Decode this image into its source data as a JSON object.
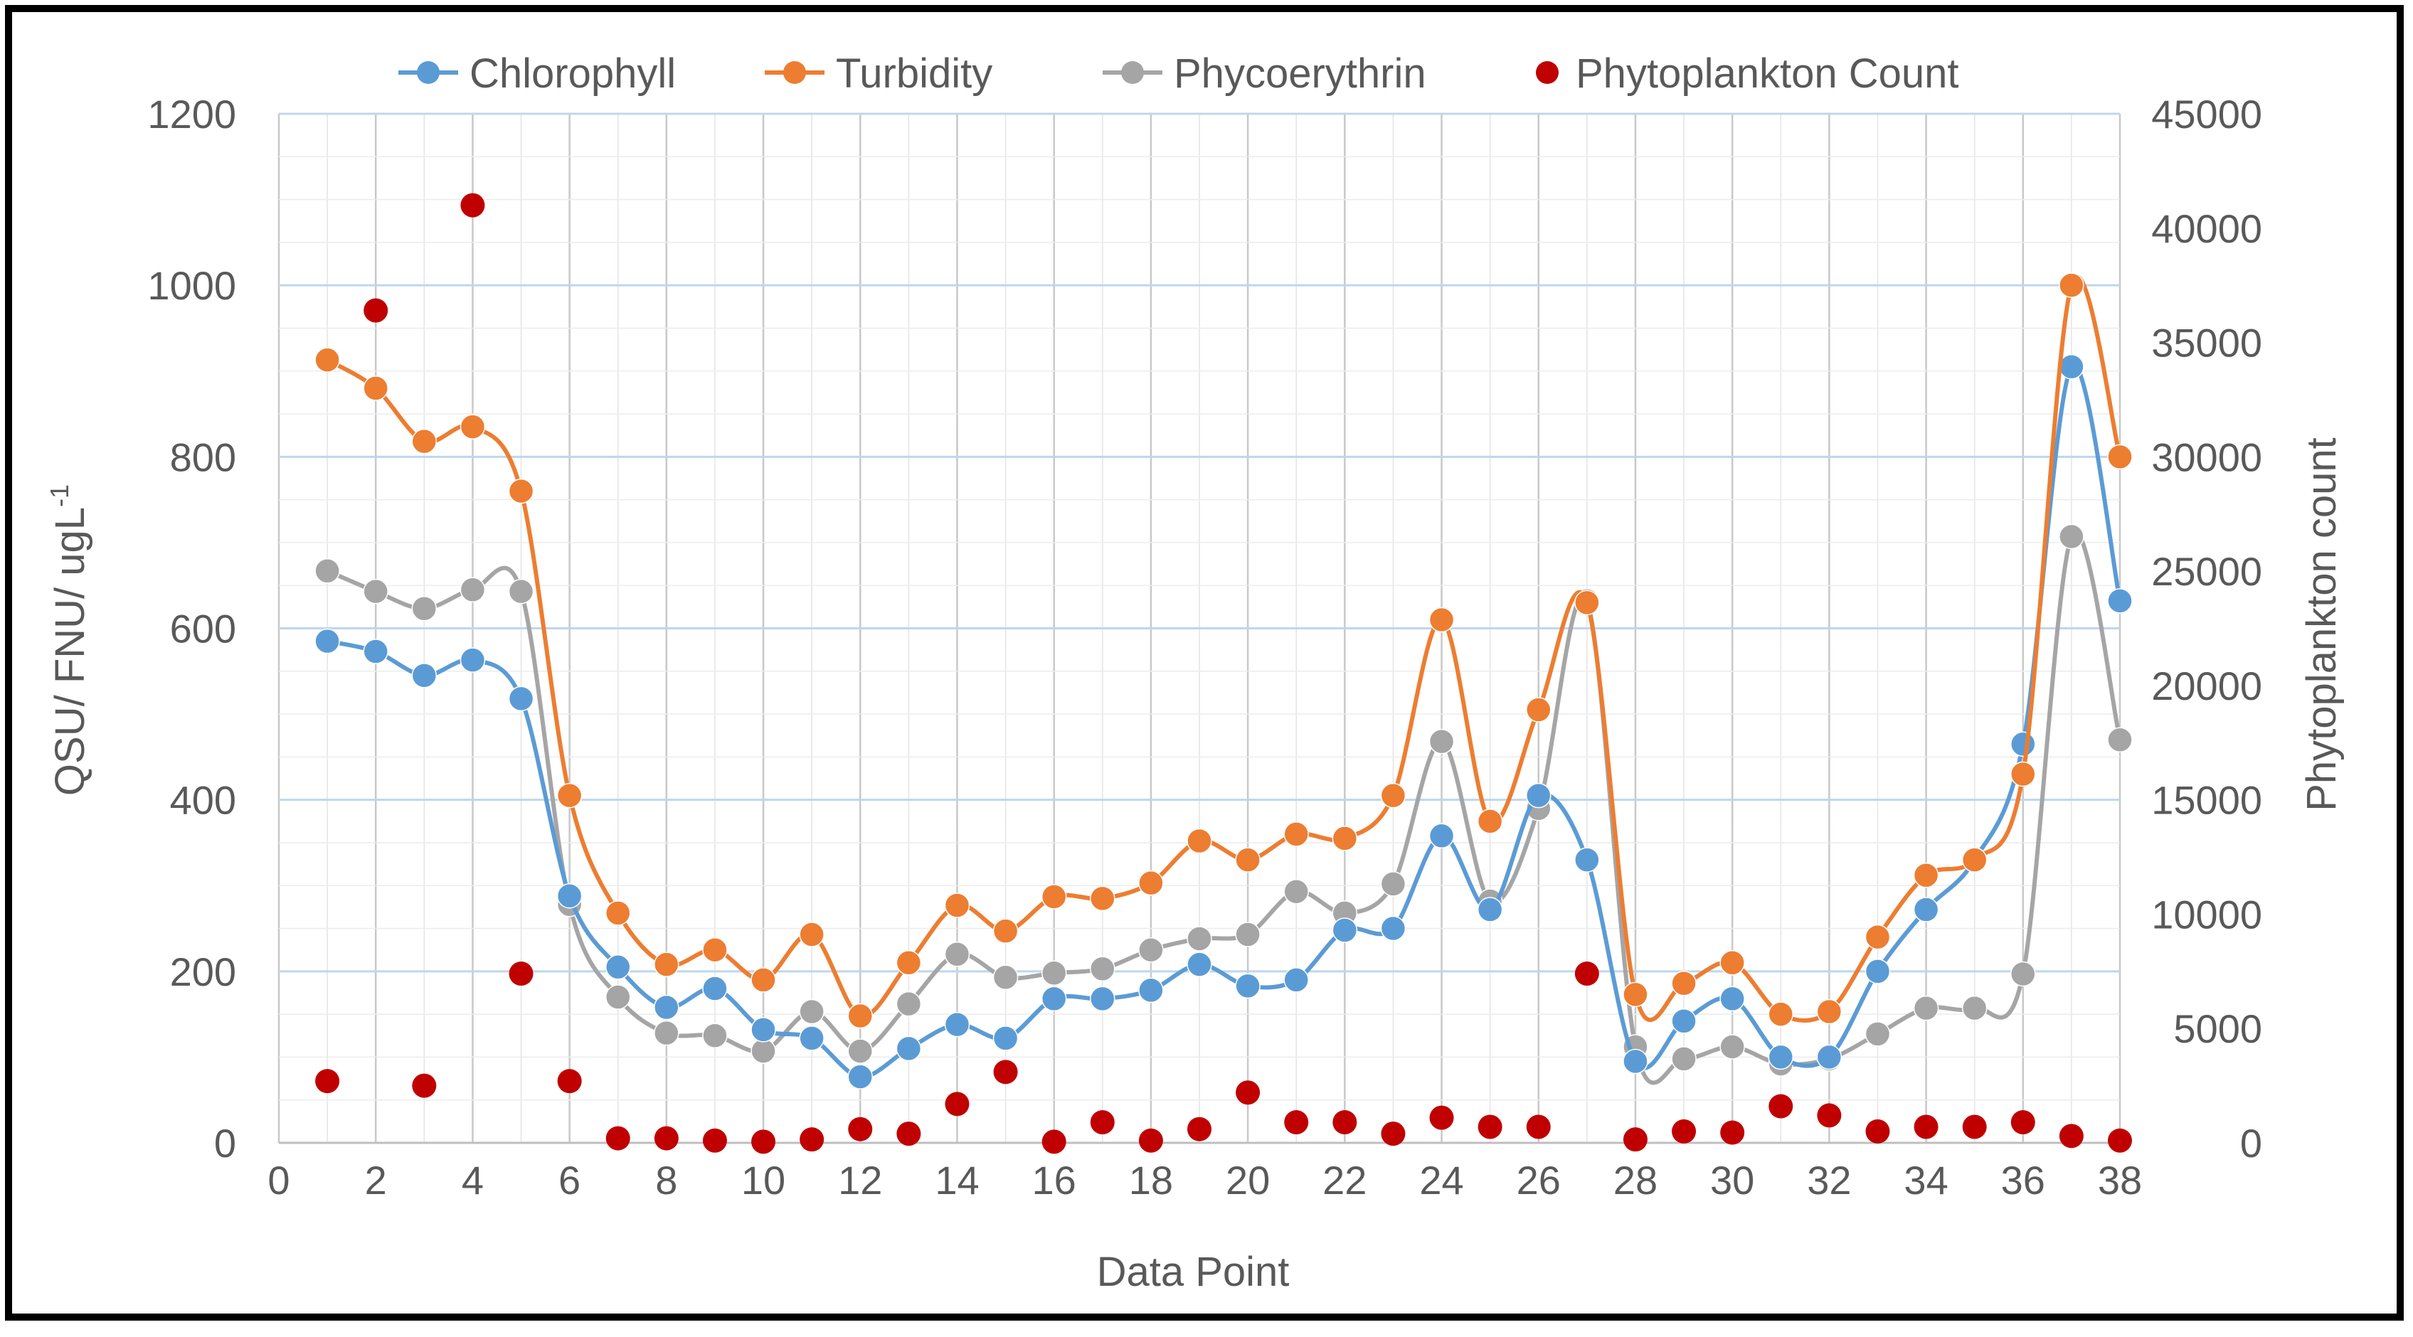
{
  "chart_data": {
    "type": "line",
    "xlabel": "Data  Point",
    "ylabel_left": "QSU/ FNU/ ugL-1",
    "ylabel_left_base": "QSU/ FNU/ ugL",
    "ylabel_left_sup": "-1",
    "ylabel_right": "Phytoplankton  count",
    "xlim": [
      0,
      38
    ],
    "ylim_left": [
      0,
      1200
    ],
    "ylim_right": [
      0,
      45000
    ],
    "x_ticks": [
      0,
      2,
      4,
      6,
      8,
      10,
      12,
      14,
      16,
      18,
      20,
      22,
      24,
      26,
      28,
      30,
      32,
      34,
      36,
      38
    ],
    "y_left_ticks": [
      0,
      200,
      400,
      600,
      800,
      1000,
      1200
    ],
    "y_right_ticks": [
      0,
      5000,
      10000,
      15000,
      20000,
      25000,
      30000,
      35000,
      40000,
      45000
    ],
    "grid": true,
    "legend_position": "top",
    "x": [
      1,
      2,
      3,
      4,
      5,
      6,
      7,
      8,
      9,
      10,
      11,
      12,
      13,
      14,
      15,
      16,
      17,
      18,
      19,
      20,
      21,
      22,
      23,
      24,
      25,
      26,
      27,
      28,
      29,
      30,
      31,
      32,
      33,
      34,
      35,
      36,
      37,
      38
    ],
    "series": [
      {
        "name": "Chlorophyll",
        "axis": "left",
        "kind": "line",
        "color": "#5b9bd5",
        "values": [
          585,
          573,
          545,
          563,
          518,
          288,
          205,
          158,
          180,
          132,
          122,
          77,
          110,
          138,
          122,
          168,
          168,
          178,
          208,
          183,
          190,
          248,
          250,
          358,
          272,
          405,
          330,
          95,
          142,
          168,
          100,
          100,
          200,
          272,
          330,
          465,
          905,
          632
        ]
      },
      {
        "name": "Turbidity",
        "axis": "left",
        "kind": "line",
        "color": "#ed7d31",
        "values": [
          913,
          880,
          818,
          835,
          760,
          405,
          268,
          208,
          225,
          190,
          243,
          148,
          210,
          277,
          247,
          287,
          285,
          303,
          352,
          330,
          360,
          355,
          405,
          610,
          375,
          505,
          630,
          173,
          186,
          210,
          150,
          153,
          240,
          312,
          330,
          430,
          1000,
          800
        ]
      },
      {
        "name": "Phycoerythrin",
        "axis": "left",
        "kind": "line",
        "color": "#a5a5a5",
        "values": [
          667,
          643,
          623,
          645,
          643,
          278,
          170,
          128,
          125,
          107,
          153,
          107,
          162,
          220,
          193,
          198,
          203,
          225,
          238,
          243,
          293,
          268,
          302,
          468,
          282,
          390,
          632,
          112,
          98,
          112,
          92,
          98,
          127,
          157,
          157,
          197,
          707,
          470
        ]
      },
      {
        "name": "Phytoplankton Count",
        "axis": "right",
        "kind": "scatter",
        "color": "#c00000",
        "values": [
          2700,
          36400,
          2500,
          41000,
          7400,
          2700,
          200,
          200,
          100,
          50,
          150,
          600,
          400,
          1700,
          3100,
          50,
          900,
          100,
          600,
          2200,
          900,
          900,
          400,
          1100,
          700,
          700,
          7400,
          150,
          500,
          450,
          1600,
          1200,
          500,
          700,
          700,
          900,
          300,
          100
        ]
      }
    ]
  }
}
